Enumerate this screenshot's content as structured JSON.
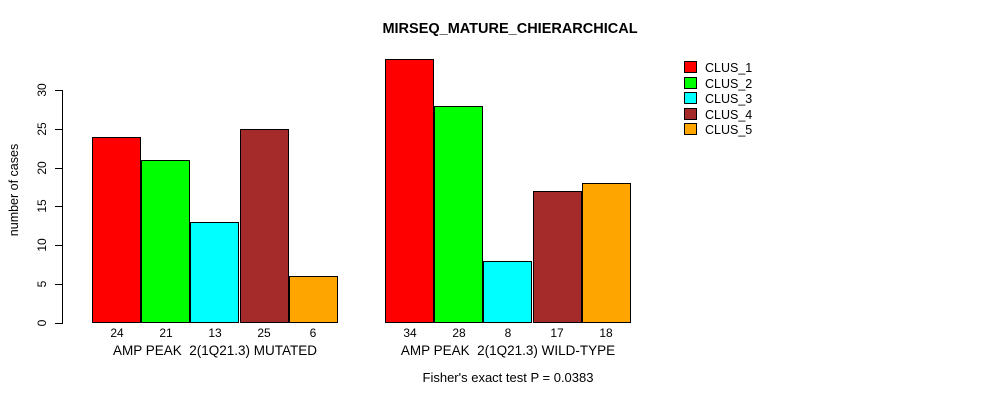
{
  "chart_data": {
    "type": "bar",
    "title": "MIRSEQ_MATURE_CHIERARCHICAL",
    "ylabel": "number of cases",
    "xlabel": "",
    "ylim": [
      0,
      30
    ],
    "yticks": [
      0,
      5,
      10,
      15,
      20,
      25,
      30
    ],
    "grid": false,
    "legend_position": "top-right",
    "legend_entries": [
      "CLUS_1",
      "CLUS_2",
      "CLUS_3",
      "CLUS_4",
      "CLUS_5"
    ],
    "cluster_colors": [
      "#FF0000",
      "#00FF00",
      "#00FFFF",
      "#A52A2A",
      "#FFA500"
    ],
    "groups": [
      {
        "label": "AMP PEAK  2(1Q21.3) MUTATED",
        "values": [
          24,
          21,
          13,
          25,
          6
        ]
      },
      {
        "label": "AMP PEAK  2(1Q21.3) WILD-TYPE",
        "values": [
          34,
          28,
          8,
          17,
          18
        ]
      }
    ],
    "footnote": "Fisher's exact test P = 0.0383"
  }
}
